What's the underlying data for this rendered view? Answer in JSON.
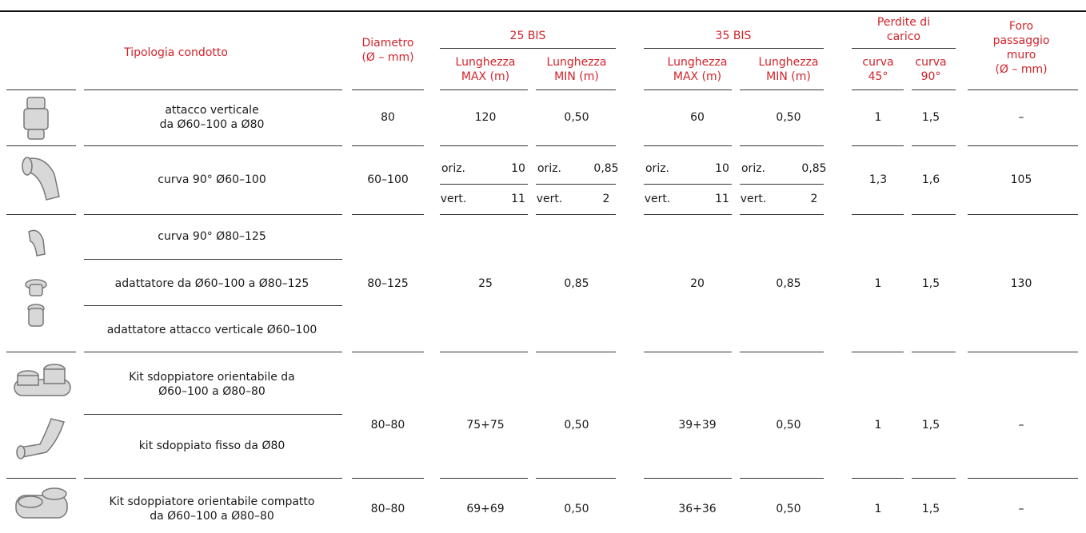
{
  "header": {
    "tipologia": "Tipologia condotto",
    "diametro": "Diametro\n(Ø – mm)",
    "bis25": "25 BIS",
    "bis35": "35 BIS",
    "perdite": "Perdite di\ncarico",
    "foro": "Foro\npassaggio muro\n(Ø – mm)",
    "sub": [
      "Lunghezza\nMAX (m)",
      "Lunghezza\nMIN (m)",
      "Lunghezza\nMAX (m)",
      "Lunghezza\nMIN (m)",
      "curva\n45°",
      "curva\n90°"
    ]
  },
  "rows": [
    {
      "descrizioni": [
        "attacco verticale\nda Ø60–100 a Ø80"
      ],
      "valori": [
        "80",
        "120",
        "0,50",
        "60",
        "0,50",
        "1",
        "1,5",
        "–"
      ]
    },
    {
      "descrizioni": [
        "curva 90° Ø60–100"
      ],
      "valori": [
        "60–100",
        [
          [
            "oriz.",
            "10"
          ],
          [
            "vert.",
            "11"
          ]
        ],
        [
          [
            "oriz.",
            "0,85"
          ],
          [
            "vert.",
            "2"
          ]
        ],
        [
          [
            "oriz.",
            "10"
          ],
          [
            "vert.",
            "11"
          ]
        ],
        [
          [
            "oriz.",
            "0,85"
          ],
          [
            "vert.",
            "2"
          ]
        ],
        "1,3",
        "1,6",
        "105"
      ]
    },
    {
      "descrizioni": [
        "curva 90° Ø80–125",
        "adattatore da Ø60–100 a Ø80–125",
        "adattatore attacco verticale Ø60–100"
      ],
      "valori": [
        "80–125",
        "25",
        "0,85",
        "20",
        "0,85",
        "1",
        "1,5",
        "130"
      ]
    },
    {
      "descrizioni": [
        "Kit sdoppiatore orientabile da\nØ60–100 a Ø80–80",
        "kit sdoppiato fisso da Ø80"
      ],
      "valori": [
        "80–80",
        "75+75",
        "0,50",
        "39+39",
        "0,50",
        "1",
        "1,5",
        "–"
      ]
    },
    {
      "descrizioni": [
        "Kit sdoppiatore orientabile compatto\nda Ø60–100 a Ø80–80"
      ],
      "valori": [
        "80–80",
        "69+69",
        "0,50",
        "36+36",
        "0,50",
        "1",
        "1,5",
        "–"
      ]
    }
  ]
}
